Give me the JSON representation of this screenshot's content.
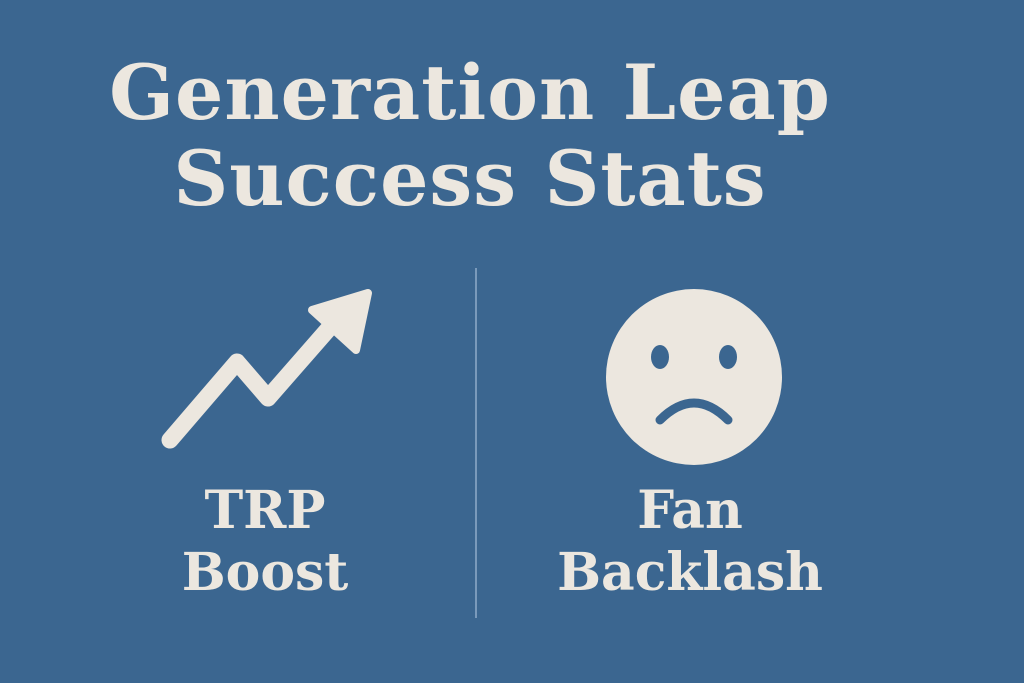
{
  "title": [
    "Generation Leap",
    "Success Stats"
  ],
  "stats": [
    {
      "label": [
        "TRP",
        "Boost"
      ]
    },
    {
      "label": [
        "Fan",
        "Backlash"
      ]
    }
  ]
}
